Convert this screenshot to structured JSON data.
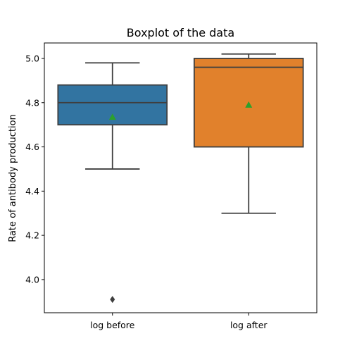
{
  "chart_data": {
    "type": "box",
    "title": "Boxplot of the data",
    "xlabel": "",
    "ylabel": "Rate of antibody production",
    "ylim": [
      3.85,
      5.07
    ],
    "yticks": [
      4.0,
      4.2,
      4.4,
      4.6,
      4.8,
      5.0
    ],
    "ytick_labels": [
      "4.0",
      "4.2",
      "4.4",
      "4.6",
      "4.8",
      "5.0"
    ],
    "grid": false,
    "legend": "none",
    "categories": [
      "log before",
      "log after"
    ],
    "boxes": [
      {
        "label": "log before",
        "color": "#3274a1",
        "whisker_low": 4.5,
        "q1": 4.7,
        "median": 4.8,
        "q3": 4.88,
        "whisker_high": 4.98,
        "mean": 4.735,
        "outliers": [
          3.91
        ]
      },
      {
        "label": "log after",
        "color": "#e1812c",
        "whisker_low": 4.3,
        "q1": 4.6,
        "median": 4.96,
        "q3": 5.0,
        "whisker_high": 5.02,
        "mean": 4.79,
        "outliers": []
      }
    ],
    "mean_marker_color": "#2ca02c",
    "line_color": "#3f3f3f"
  }
}
